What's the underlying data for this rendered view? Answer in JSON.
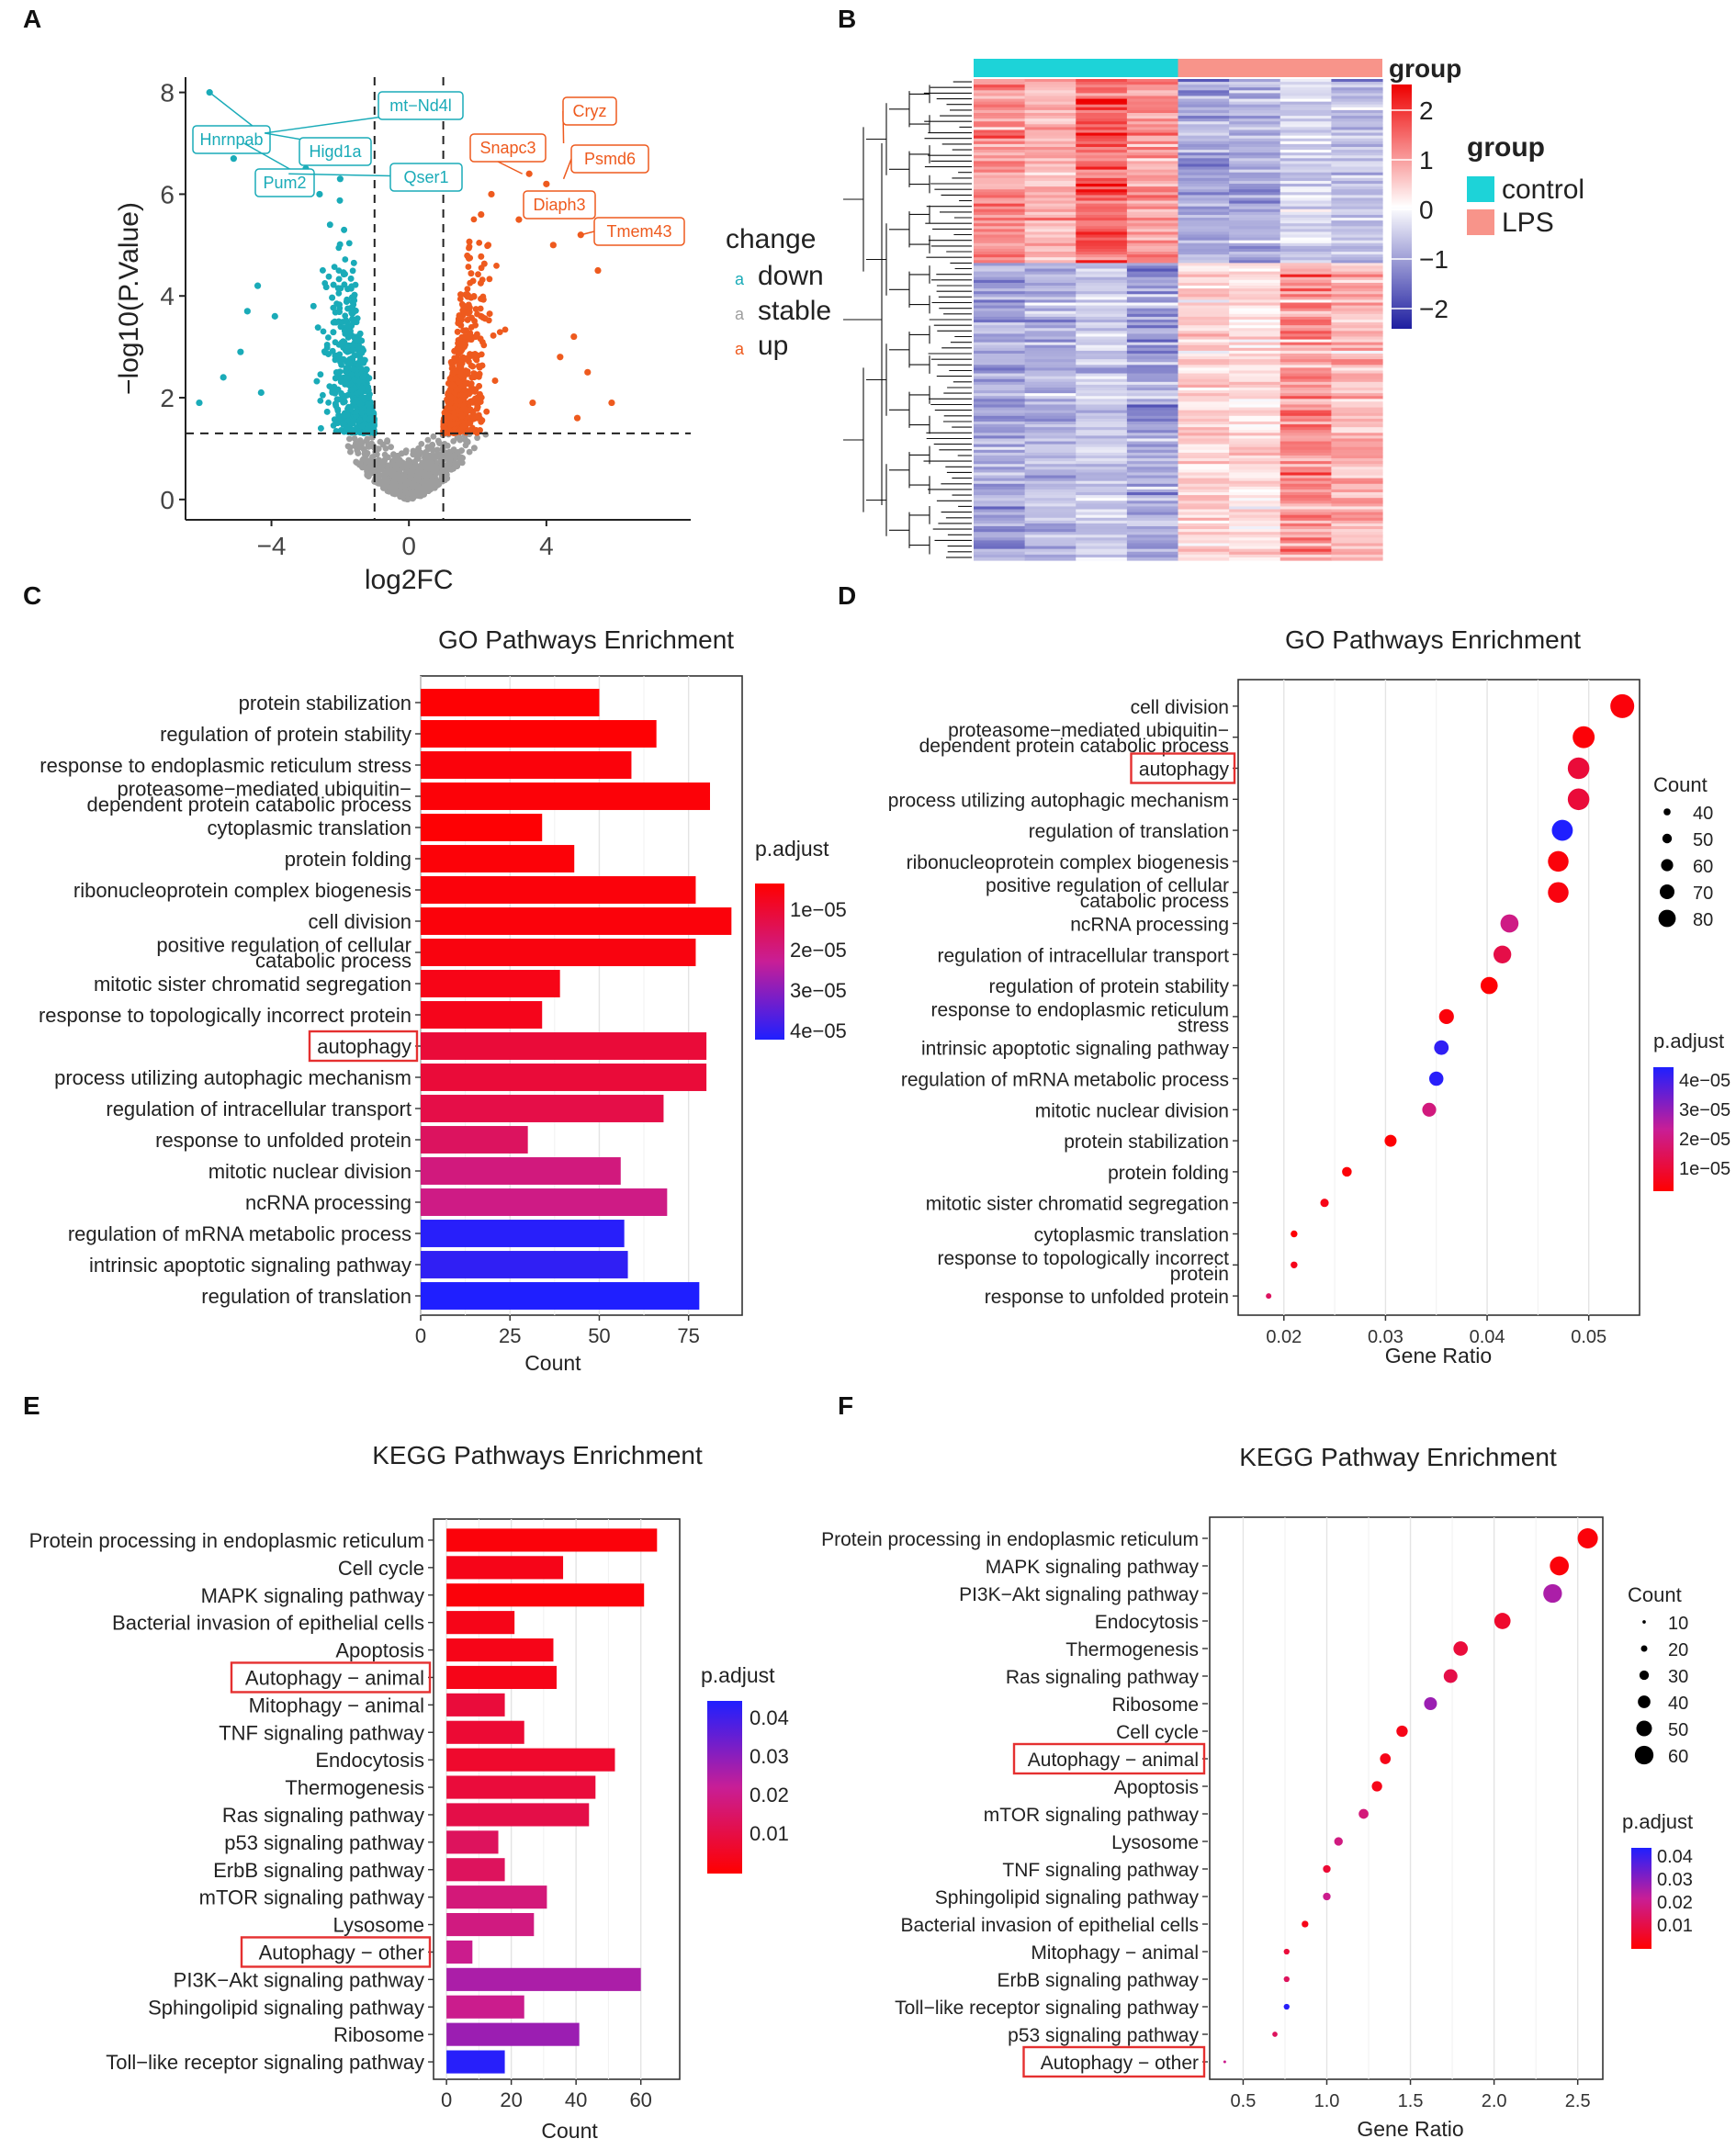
{
  "figure_panels": [
    "A",
    "B",
    "C",
    "D",
    "E",
    "F"
  ],
  "chart_data": [
    {
      "panel": "A",
      "type": "scatter",
      "title": "",
      "xlabel": "log2FC",
      "ylabel": "−log10(P.Value)",
      "xlim": [
        -6.5,
        8.2
      ],
      "ylim": [
        -0.4,
        8.3
      ],
      "xticks": [
        -4,
        0,
        4
      ],
      "yticks": [
        0,
        2,
        4,
        6,
        8
      ],
      "cutoff_x": [
        -1,
        1
      ],
      "cutoff_y": 1.3,
      "legend_title": "change",
      "legend": [
        {
          "key": "down",
          "label": "down",
          "color": "#1AABB8"
        },
        {
          "key": "stable",
          "label": "stable",
          "color": "#9E9E9E"
        },
        {
          "key": "up",
          "label": "up",
          "color": "#EE5A1E"
        }
      ],
      "points_up": [
        [
          2.4,
          6.0
        ],
        [
          3.5,
          6.4
        ],
        [
          4.0,
          6.2
        ],
        [
          4.5,
          5.8
        ],
        [
          5.0,
          5.2
        ],
        [
          4.2,
          5.0
        ],
        [
          3.2,
          5.5
        ],
        [
          5.5,
          4.5
        ],
        [
          4.8,
          3.2
        ],
        [
          5.2,
          2.5
        ],
        [
          4.4,
          2.8
        ],
        [
          3.6,
          1.9
        ],
        [
          5.9,
          1.9
        ],
        [
          4.9,
          1.6
        ],
        [
          2.1,
          5.6
        ]
      ],
      "points_down": [
        [
          -5.8,
          8.0
        ],
        [
          -4.8,
          7.0
        ],
        [
          -4.2,
          7.2
        ],
        [
          -3.5,
          6.4
        ],
        [
          -3.0,
          6.5
        ],
        [
          -2.0,
          6.3
        ],
        [
          -5.1,
          6.7
        ],
        [
          -4.4,
          4.2
        ],
        [
          -4.7,
          3.7
        ],
        [
          -5.4,
          2.4
        ],
        [
          -4.9,
          2.9
        ],
        [
          -6.1,
          1.9
        ],
        [
          -3.9,
          3.6
        ],
        [
          -4.3,
          2.1
        ],
        [
          -2.6,
          6.0
        ]
      ],
      "labels": [
        {
          "text": "Hnrnpab",
          "x": -5.8,
          "y": 8.0,
          "group": "down"
        },
        {
          "text": "Pum2",
          "x": -4.8,
          "y": 7.0,
          "group": "down"
        },
        {
          "text": "Higd1a",
          "x": -4.2,
          "y": 7.2,
          "group": "down"
        },
        {
          "text": "mt−Nd4l",
          "x": -4.2,
          "y": 7.2,
          "group": "down"
        },
        {
          "text": "Qser1",
          "x": -3.5,
          "y": 6.4,
          "group": "down"
        },
        {
          "text": "Cryz",
          "x": 4.5,
          "y": 7.0,
          "group": "up"
        },
        {
          "text": "Snapc3",
          "x": 3.3,
          "y": 6.4,
          "group": "up"
        },
        {
          "text": "Psmd6",
          "x": 4.5,
          "y": 6.3,
          "group": "up"
        },
        {
          "text": "Diaph3",
          "x": 3.6,
          "y": 5.8,
          "group": "up"
        },
        {
          "text": "Tmem43",
          "x": 5.0,
          "y": 5.2,
          "group": "up"
        }
      ]
    },
    {
      "panel": "B",
      "type": "heatmap",
      "title": "",
      "annotation_label": "group",
      "groups": [
        {
          "label": "control",
          "color": "#1DD3D8",
          "columns": 4
        },
        {
          "label": "LPS",
          "color": "#F8948A",
          "columns": 4
        }
      ],
      "colorbar_title": "group",
      "colorbar_ticks": [
        "2",
        "1",
        "0",
        "−1",
        "−2"
      ],
      "colorbar_range": [
        -2,
        2
      ],
      "row_blocks": [
        {
          "fraction": 0.38,
          "means": [
            1.0,
            0.6,
            1.4,
            0.9,
            -0.9,
            -0.8,
            -0.4,
            -0.6
          ]
        },
        {
          "fraction": 0.62,
          "means": [
            -0.9,
            -0.7,
            -0.5,
            -0.9,
            0.4,
            0.3,
            1.0,
            0.6
          ]
        }
      ]
    },
    {
      "panel": "C",
      "type": "bar",
      "orientation": "horizontal",
      "title": "GO Pathways Enrichment",
      "xlabel": "Count",
      "ylabel": "",
      "xlim": [
        0,
        90
      ],
      "xticks": [
        0,
        25,
        50,
        75
      ],
      "legend_title": "p.adjust",
      "legend_ticks": [
        "1e−05",
        "2e−05",
        "3e−05",
        "4e−05"
      ],
      "legend_range": [
        4.5e-06,
        4.4e-05
      ],
      "highlighted": [
        "autophagy"
      ],
      "categories": [
        "protein stabilization",
        "regulation of protein stability",
        "response to endoplasmic reticulum stress",
        "proteasome−mediated ubiquitin−\ndependent protein catabolic process",
        "cytoplasmic translation",
        "protein folding",
        "ribonucleoprotein complex biogenesis",
        "cell division",
        "positive regulation of cellular\ncatabolic process",
        "mitotic sister chromatid  segregation",
        "response to topologically incorrect protein",
        "autophagy",
        "process utilizing autophagic mechanism",
        "regulation of intracellular transport",
        "response to unfolded protein",
        "mitotic nuclear division",
        "ncRNA processing",
        "regulation of mRNA metabolic process",
        "intrinsic apoptotic signaling pathway",
        "regulation of translation"
      ],
      "values": [
        50,
        66,
        59,
        81,
        34,
        43,
        77,
        87,
        77,
        39,
        34,
        80,
        80,
        68,
        30,
        56,
        69,
        57,
        58,
        78
      ],
      "padj": [
        5e-06,
        5e-06,
        6e-06,
        5.5e-06,
        5e-06,
        5.5e-06,
        6e-06,
        6e-06,
        6.5e-06,
        7.5e-06,
        8e-06,
        1.2e-05,
        1.2e-05,
        1.4e-05,
        1.7e-05,
        2.1e-05,
        2.2e-05,
        4.3e-05,
        4.2e-05,
        4.4e-05
      ]
    },
    {
      "panel": "D",
      "type": "scatter",
      "subtype": "dot",
      "title": "GO Pathways Enrichment",
      "xlabel": "Gene Ratio",
      "ylabel": "",
      "xlim": [
        0.0155,
        0.055
      ],
      "xticks": [
        0.02,
        0.03,
        0.04,
        0.05
      ],
      "xtick_labels": [
        "0.02",
        "0.03",
        "0.04",
        "0.05"
      ],
      "size_legend_title": "Count",
      "size_legend": [
        40,
        50,
        60,
        70,
        80
      ],
      "color_legend_title": "p.adjust",
      "color_legend_ticks": [
        "4e−05",
        "3e−05",
        "2e−05",
        "1e−05"
      ],
      "color_range": [
        4.5e-06,
        4.4e-05
      ],
      "highlighted": [
        "autophagy"
      ],
      "categories": [
        "cell division",
        "proteasome−mediated ubiquitin−\ndependent protein catabolic process",
        "autophagy",
        "process utilizing autophagic mechanism",
        "regulation of translation",
        "ribonucleoprotein complex biogenesis",
        "positive regulation of cellular\ncatabolic process",
        "ncRNA processing",
        "regulation of intracellular transport",
        "regulation of protein stability",
        "response to endoplasmic reticulum\nstress",
        "intrinsic apoptotic signaling pathway",
        "regulation of mRNA metabolic process",
        "mitotic nuclear division",
        "protein stabilization",
        "protein folding",
        "mitotic sister chromatid segregation",
        "cytoplasmic translation",
        "response to topologically incorrect\nprotein",
        "response to unfolded protein"
      ],
      "gene_ratio": [
        0.0533,
        0.0495,
        0.049,
        0.049,
        0.0474,
        0.047,
        0.047,
        0.0422,
        0.0415,
        0.0402,
        0.036,
        0.0355,
        0.035,
        0.0343,
        0.0305,
        0.0262,
        0.024,
        0.021,
        0.021,
        0.0185
      ],
      "counts": [
        87,
        81,
        80,
        80,
        78,
        77,
        77,
        69,
        68,
        66,
        59,
        58,
        57,
        56,
        50,
        43,
        39,
        34,
        34,
        30
      ],
      "padj": [
        6e-06,
        5.5e-06,
        1.2e-05,
        1.2e-05,
        4.4e-05,
        6e-06,
        6.5e-06,
        2.2e-05,
        1.4e-05,
        5e-06,
        6e-06,
        4.2e-05,
        4.3e-05,
        2.1e-05,
        5e-06,
        5.5e-06,
        7.5e-06,
        5e-06,
        8e-06,
        1.7e-05
      ]
    },
    {
      "panel": "E",
      "type": "bar",
      "orientation": "horizontal",
      "title": "KEGG Pathways Enrichment",
      "xlabel": "Count",
      "ylabel": "",
      "xlim": [
        -4,
        72
      ],
      "xticks": [
        0,
        20,
        40,
        60
      ],
      "legend_title": "p.adjust",
      "legend_ticks": [
        "0.04",
        "0.03",
        "0.02",
        "0.01"
      ],
      "legend_range": [
        0.0005,
        0.044
      ],
      "highlighted": [
        "Autophagy − animal",
        "Autophagy − other"
      ],
      "categories": [
        "Protein processing in endoplasmic reticulum",
        "Cell cycle",
        "MAPK signaling pathway",
        "Bacterial invasion of epithelial cells",
        "Apoptosis",
        "Autophagy − animal",
        "Mitophagy − animal",
        "TNF signaling pathway",
        "Endocytosis",
        "Thermogenesis",
        "Ras signaling pathway",
        "p53 signaling pathway",
        "ErbB signaling pathway",
        "mTOR signaling pathway",
        "Lysosome",
        "Autophagy − other",
        "PI3K−Akt signaling pathway",
        "Sphingolipid signaling pathway",
        "Ribosome",
        "Toll−like receptor signaling pathway"
      ],
      "values": [
        65,
        36,
        61,
        21,
        33,
        34,
        18,
        24,
        52,
        46,
        44,
        16,
        18,
        31,
        27,
        8,
        60,
        24,
        41,
        18
      ],
      "padj": [
        0.002,
        0.004,
        0.002,
        0.004,
        0.004,
        0.004,
        0.009,
        0.008,
        0.007,
        0.009,
        0.011,
        0.014,
        0.014,
        0.018,
        0.019,
        0.021,
        0.026,
        0.021,
        0.028,
        0.043
      ]
    },
    {
      "panel": "F",
      "type": "scatter",
      "subtype": "dot",
      "title": "KEGG Pathway Enrichment",
      "xlabel": "Gene Ratio",
      "ylabel": "",
      "xlim": [
        0.3,
        2.65
      ],
      "xticks": [
        0.5,
        1.0,
        1.5,
        2.0,
        2.5
      ],
      "xtick_labels": [
        "0.5",
        "1.0",
        "1.5",
        "2.0",
        "2.5"
      ],
      "size_legend_title": "Count",
      "size_legend": [
        10,
        20,
        30,
        40,
        50,
        60
      ],
      "color_legend_title": "p.adjust",
      "color_legend_ticks": [
        "0.04",
        "0.03",
        "0.02",
        "0.01"
      ],
      "color_range": [
        0.0005,
        0.044
      ],
      "highlighted": [
        "Autophagy − animal",
        "Autophagy − other"
      ],
      "categories": [
        "Protein processing in endoplasmic reticulum",
        "MAPK signaling pathway",
        "PI3K−Akt signaling pathway",
        "Endocytosis",
        "Thermogenesis",
        "Ras signaling pathway",
        "Ribosome",
        "Cell cycle",
        "Autophagy − animal",
        "Apoptosis",
        "mTOR signaling pathway",
        "Lysosome",
        "TNF signaling pathway",
        "Sphingolipid signaling pathway",
        "Bacterial invasion of epithelial cells",
        "Mitophagy − animal",
        "ErbB signaling pathway",
        "Toll−like receptor signaling pathway",
        "p53 signaling pathway",
        "Autophagy − other"
      ],
      "gene_ratio": [
        2.56,
        2.39,
        2.35,
        2.05,
        1.8,
        1.74,
        1.62,
        1.45,
        1.35,
        1.3,
        1.22,
        1.07,
        1.0,
        1.0,
        0.87,
        0.76,
        0.76,
        0.76,
        0.69,
        0.39
      ],
      "counts": [
        65,
        61,
        60,
        52,
        46,
        44,
        41,
        36,
        34,
        33,
        31,
        27,
        24,
        24,
        21,
        18,
        18,
        18,
        16,
        8
      ],
      "padj": [
        0.002,
        0.002,
        0.026,
        0.007,
        0.009,
        0.011,
        0.028,
        0.004,
        0.004,
        0.004,
        0.018,
        0.019,
        0.008,
        0.021,
        0.004,
        0.009,
        0.014,
        0.043,
        0.014,
        0.021
      ]
    }
  ]
}
